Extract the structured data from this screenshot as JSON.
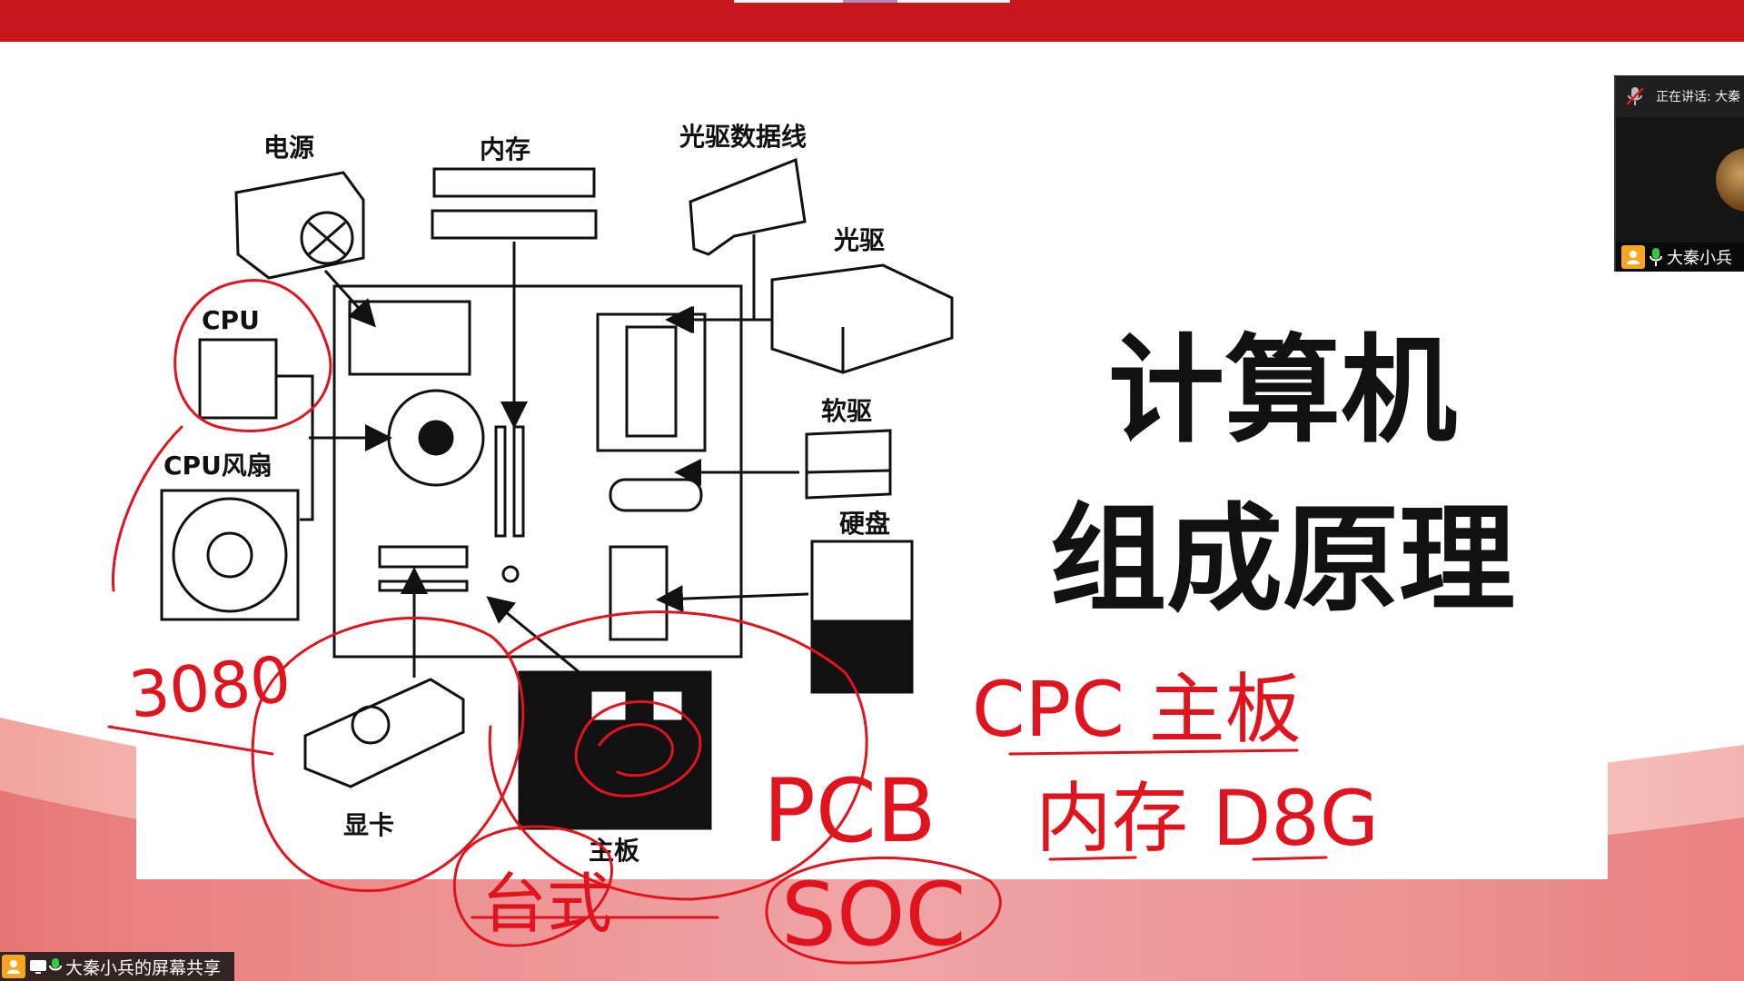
{
  "slide": {
    "title_line1": "计算机",
    "title_line2": "组成原理",
    "labels": {
      "power": "电源",
      "memory": "内存",
      "optical_cable": "光驱数据线",
      "optical_drive": "光驱",
      "cpu": "CPU",
      "cpu_fan": "CPU风扇",
      "floppy": "软驱",
      "hdd": "硬盘",
      "gpu": "显卡",
      "motherboard": "主板"
    }
  },
  "annotations": {
    "gpu_model": "3080",
    "cpu_board": "CPC 主板",
    "memory_note": "内存 D8G",
    "pcb": "PCB",
    "soc": "SOC",
    "desktop": "台式"
  },
  "participant_panel": {
    "speaking": "正在讲话: 大秦",
    "name": "大秦小兵"
  },
  "share_label": "大秦小兵的屏幕共享",
  "colors": {
    "top_bar": "#c8161d",
    "ink": "#e0141e",
    "badge": "#f5a623"
  }
}
